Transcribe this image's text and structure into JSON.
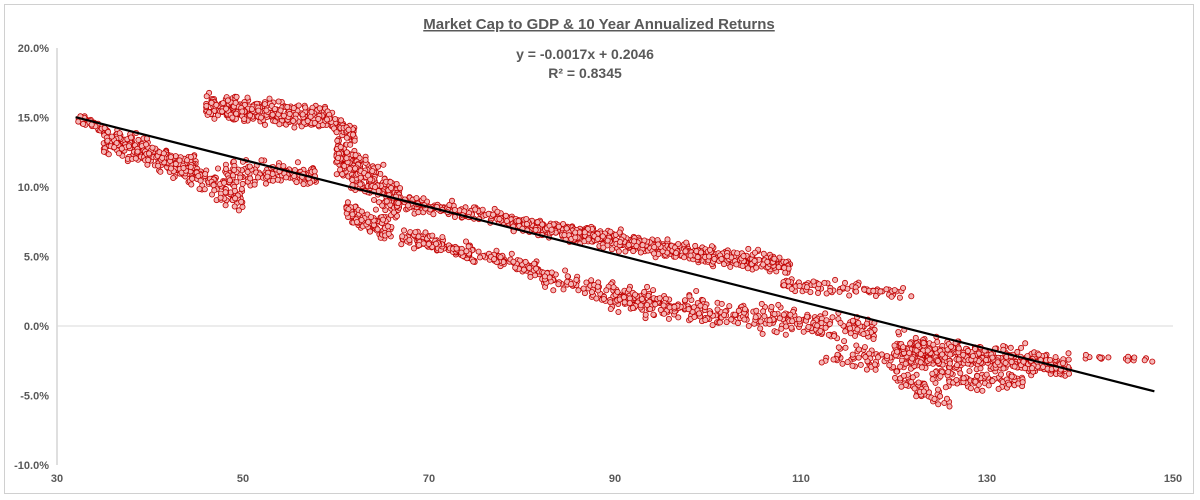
{
  "chart_data": {
    "type": "scatter",
    "title": "Market Cap to GDP & 10 Year Annualized Returns",
    "xlabel": "",
    "ylabel": "",
    "xlim": [
      30,
      150
    ],
    "ylim": [
      -0.1,
      0.2
    ],
    "x_ticks": [
      30,
      50,
      70,
      90,
      110,
      130,
      150
    ],
    "x_tick_labels": [
      "30",
      "50",
      "70",
      "90",
      "110",
      "130",
      "150"
    ],
    "y_ticks": [
      0.2,
      0.15,
      0.1,
      0.05,
      0.0,
      -0.05,
      -0.1
    ],
    "y_tick_labels": [
      "20.0%",
      "15.0%",
      "10.0%",
      "5.0%",
      "0.0%",
      "-5.0%",
      "-10.0%"
    ],
    "grid": false,
    "legend": "none",
    "trendline": {
      "slope": -0.0017,
      "intercept": 0.2046,
      "x_range": [
        32,
        148
      ],
      "equation_label": "y = -0.0017x + 0.2046",
      "r2_label": "R² = 0.8345",
      "color": "#000000"
    },
    "series": [
      {
        "marker_fill": "#f4b6b6",
        "marker_edge": "#c00000",
        "clusters": [
          {
            "x": [
              32,
              35
            ],
            "y": [
              0.15,
              0.142
            ],
            "spread": 0.003,
            "count": 45
          },
          {
            "x": [
              35,
              45
            ],
            "y": [
              0.135,
              0.112
            ],
            "spread": 0.009,
            "count": 320
          },
          {
            "x": [
              45,
              50
            ],
            "y": [
              0.108,
              0.093
            ],
            "spread": 0.011,
            "count": 90
          },
          {
            "x": [
              48,
              58
            ],
            "y": [
              0.11,
              0.108
            ],
            "spread": 0.008,
            "count": 160
          },
          {
            "x": [
              46,
              59
            ],
            "y": [
              0.158,
              0.15
            ],
            "spread": 0.008,
            "count": 330
          },
          {
            "x": [
              59,
              62
            ],
            "y": [
              0.15,
              0.138
            ],
            "spread": 0.006,
            "count": 70
          },
          {
            "x": [
              60,
              67
            ],
            "y": [
              0.125,
              0.088
            ],
            "spread": 0.013,
            "count": 300
          },
          {
            "x": [
              61,
              66
            ],
            "y": [
              0.082,
              0.07
            ],
            "spread": 0.008,
            "count": 110
          },
          {
            "x": [
              66,
              79
            ],
            "y": [
              0.09,
              0.076
            ],
            "spread": 0.005,
            "count": 180
          },
          {
            "x": [
              79,
              96
            ],
            "y": [
              0.074,
              0.055
            ],
            "spread": 0.006,
            "count": 420
          },
          {
            "x": [
              96,
              109
            ],
            "y": [
              0.055,
              0.043
            ],
            "spread": 0.006,
            "count": 230
          },
          {
            "x": [
              67,
              82
            ],
            "y": [
              0.065,
              0.04
            ],
            "spread": 0.006,
            "count": 220
          },
          {
            "x": [
              82,
              96
            ],
            "y": [
              0.035,
              0.015
            ],
            "spread": 0.007,
            "count": 140
          },
          {
            "x": [
              88,
              118
            ],
            "y": [
              0.02,
              -0.003
            ],
            "spread": 0.009,
            "count": 330
          },
          {
            "x": [
              108,
              122
            ],
            "y": [
              0.03,
              0.023
            ],
            "spread": 0.005,
            "count": 90
          },
          {
            "x": [
              112,
              127
            ],
            "y": [
              -0.02,
              -0.03
            ],
            "spread": 0.007,
            "count": 100
          },
          {
            "x": [
              120,
              126
            ],
            "y": [
              -0.035,
              -0.055
            ],
            "spread": 0.008,
            "count": 60
          },
          {
            "x": [
              120,
              139
            ],
            "y": [
              -0.015,
              -0.03
            ],
            "spread": 0.009,
            "count": 430
          },
          {
            "x": [
              124,
              134
            ],
            "y": [
              -0.038,
              -0.04
            ],
            "spread": 0.006,
            "count": 90
          },
          {
            "x": [
              139,
              148
            ],
            "y": [
              -0.022,
              -0.024
            ],
            "spread": 0.002,
            "count": 18
          }
        ]
      }
    ]
  }
}
